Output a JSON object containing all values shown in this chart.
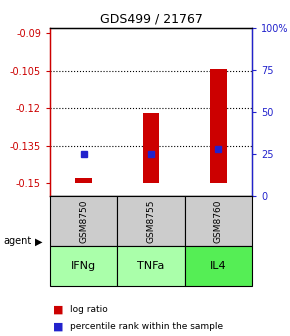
{
  "title": "GDS499 / 21767",
  "samples": [
    "GSM8750",
    "GSM8755",
    "GSM8760"
  ],
  "agents": [
    "IFNg",
    "TNFa",
    "IL4"
  ],
  "log_ratios": [
    -0.148,
    -0.122,
    -0.1045
  ],
  "bar_base": -0.15,
  "percentile_ranks": [
    25,
    25,
    28
  ],
  "ylim_left": [
    -0.155,
    -0.088
  ],
  "yticks_left": [
    -0.15,
    -0.135,
    -0.12,
    -0.105,
    -0.09
  ],
  "ytick_labels_left": [
    "-0.15",
    "-0.135",
    "-0.12",
    "-0.105",
    "-0.09"
  ],
  "yticks_right_pct": [
    0,
    25,
    50,
    75,
    100
  ],
  "ytick_labels_right": [
    "0",
    "25",
    "50",
    "75",
    "100%"
  ],
  "grid_yticks": [
    -0.135,
    -0.12,
    -0.105
  ],
  "bar_color": "#cc0000",
  "percentile_color": "#2222cc",
  "agent_colors": [
    "#aaffaa",
    "#aaffaa",
    "#55ee55"
  ],
  "sample_bg_color": "#cccccc",
  "legend_log_ratio": "log ratio",
  "legend_percentile": "percentile rank within the sample",
  "left_axis_color": "#cc0000",
  "right_axis_color": "#2222cc",
  "bar_width": 0.25
}
